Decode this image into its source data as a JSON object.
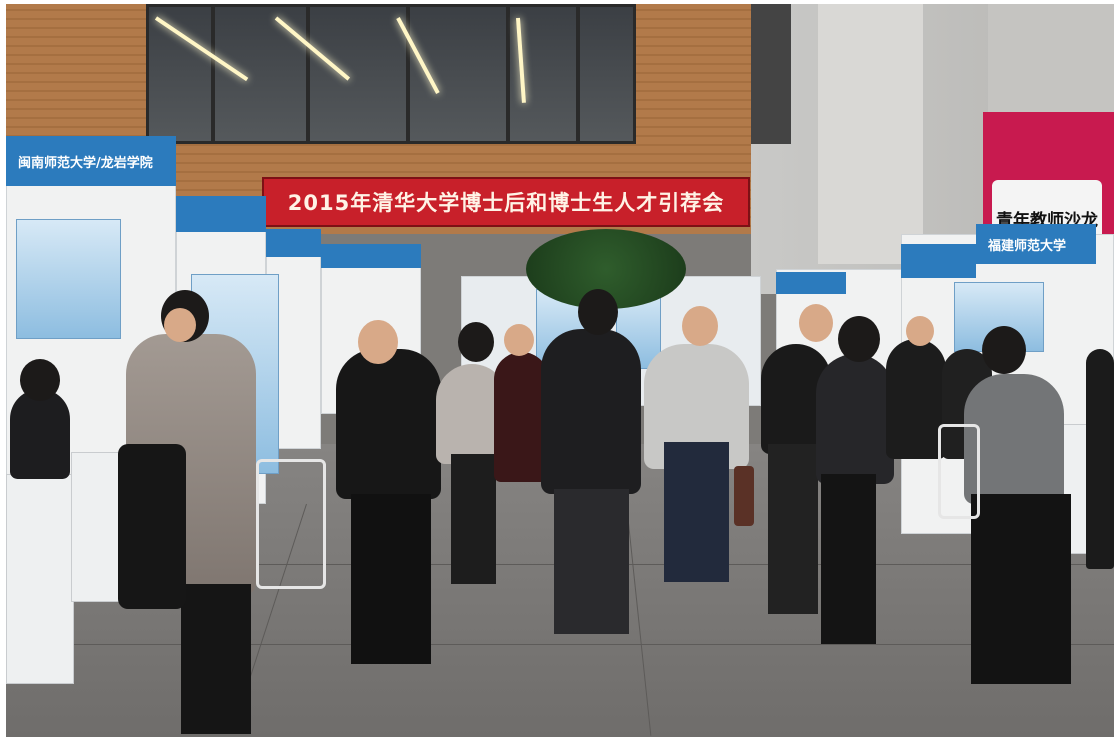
{
  "scene": {
    "event_banner_text": "2015年清华大学博士后和博士生人才引荐会",
    "booth_signs": [
      "闽南师范大学/龙岩学院",
      "福建师范大学"
    ],
    "pink_sign_text": "青年教师沙龙",
    "colors": {
      "banner_red": "#c8202a",
      "booth_blue": "#2c7bbd",
      "pink_sign": "#c81a4f",
      "wood": "#b27a4a",
      "floor": "#7d7b78"
    }
  }
}
